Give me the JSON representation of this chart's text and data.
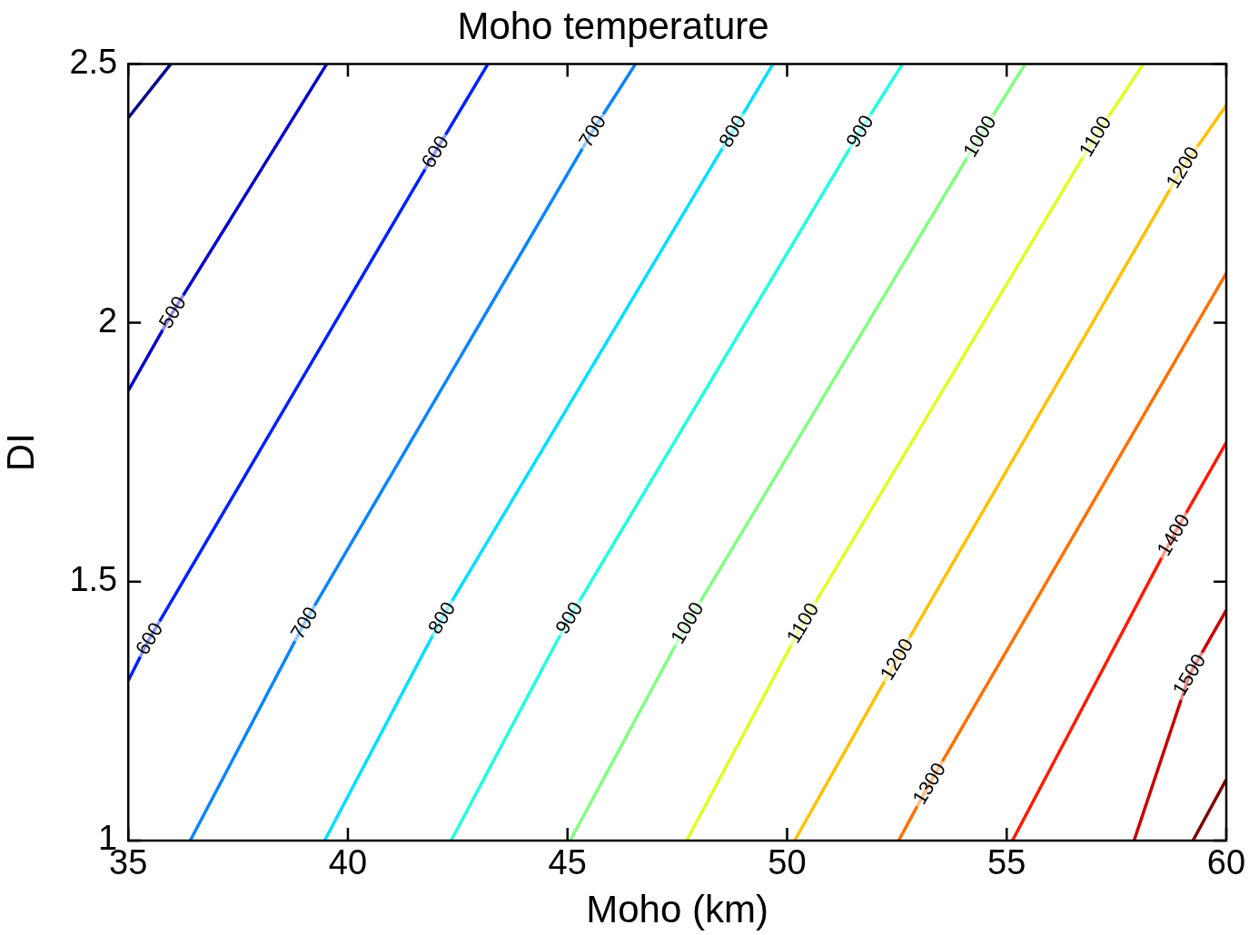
{
  "chart_data": {
    "type": "line",
    "title": "Moho temperature",
    "xlabel": "Moho (km)",
    "ylabel": "DI",
    "xlim": [
      35,
      60
    ],
    "xticks": [
      35,
      40,
      45,
      50,
      55,
      60
    ],
    "ylim": [
      1,
      2.5
    ],
    "yticks": [
      1,
      1.5,
      2,
      2.5
    ],
    "grid": false,
    "legend": false,
    "marker": "none",
    "line_style": "solid",
    "series": [
      {
        "color": "#00008f",
        "x": [
          35,
          35.97
        ],
        "values": [
          2.396,
          2.5
        ]
      },
      {
        "color": "#0000d0",
        "x": [
          35,
          36.01,
          39.52
        ],
        "values": [
          1.869,
          2.02,
          2.5
        ]
      },
      {
        "color": "#0020ff",
        "x": [
          35,
          35.48,
          41.99,
          43.19
        ],
        "values": [
          1.309,
          1.39,
          2.33,
          2.5
        ]
      },
      {
        "color": "#0a84ff",
        "x": [
          36.41,
          39.01,
          45.57,
          46.55
        ],
        "values": [
          1,
          1.42,
          2.37,
          2.5
        ]
      },
      {
        "color": "#00dfff",
        "x": [
          39.47,
          42.14,
          48.76,
          49.68
        ],
        "values": [
          1,
          1.43,
          2.37,
          2.5
        ]
      },
      {
        "color": "#20ffdf",
        "x": [
          42.35,
          45.04,
          51.66,
          52.63
        ],
        "values": [
          1,
          1.43,
          2.37,
          2.5
        ]
      },
      {
        "color": "#80ff80",
        "x": [
          45.06,
          47.73,
          54.39,
          55.42
        ],
        "values": [
          1,
          1.42,
          2.36,
          2.5
        ]
      },
      {
        "color": "#dfff20",
        "x": [
          47.71,
          50.36,
          57.02,
          58.11
        ],
        "values": [
          1,
          1.42,
          2.36,
          2.5
        ]
      },
      {
        "color": "#ffc000",
        "x": [
          50.17,
          52.5,
          59.01,
          60
        ],
        "values": [
          1,
          1.35,
          2.3,
          2.42
        ]
      },
      {
        "color": "#ff7000",
        "x": [
          52.54,
          53.24,
          60
        ],
        "values": [
          1,
          1.11,
          2.096
        ]
      },
      {
        "color": "#ff1a00",
        "x": [
          55.13,
          58.8,
          60
        ],
        "values": [
          1,
          1.59,
          1.769
        ]
      },
      {
        "color": "#c80000",
        "x": [
          57.9,
          59.16,
          60
        ],
        "values": [
          1,
          1.32,
          1.445
        ]
      },
      {
        "color": "#800000",
        "x": [
          59.24,
          60
        ],
        "values": [
          1,
          1.118
        ]
      }
    ],
    "annotations": [
      {
        "text": "500",
        "x": 36.01,
        "y": 2.02
      },
      {
        "text": "600",
        "x": 41.99,
        "y": 2.33
      },
      {
        "text": "600",
        "x": 35.48,
        "y": 1.39
      },
      {
        "text": "700",
        "x": 45.57,
        "y": 2.37
      },
      {
        "text": "700",
        "x": 39.01,
        "y": 1.42
      },
      {
        "text": "800",
        "x": 48.76,
        "y": 2.37
      },
      {
        "text": "800",
        "x": 42.14,
        "y": 1.43
      },
      {
        "text": "900",
        "x": 51.66,
        "y": 2.37
      },
      {
        "text": "900",
        "x": 45.04,
        "y": 1.43
      },
      {
        "text": "1000",
        "x": 54.39,
        "y": 2.36
      },
      {
        "text": "1000",
        "x": 47.73,
        "y": 1.42
      },
      {
        "text": "1100",
        "x": 57.02,
        "y": 2.36
      },
      {
        "text": "1100",
        "x": 50.36,
        "y": 1.42
      },
      {
        "text": "1200",
        "x": 59.01,
        "y": 2.3
      },
      {
        "text": "1200",
        "x": 52.5,
        "y": 1.35
      },
      {
        "text": "1300",
        "x": 53.24,
        "y": 1.11
      },
      {
        "text": "1400",
        "x": 58.8,
        "y": 1.59
      },
      {
        "text": "1500",
        "x": 59.16,
        "y": 1.32
      }
    ]
  }
}
